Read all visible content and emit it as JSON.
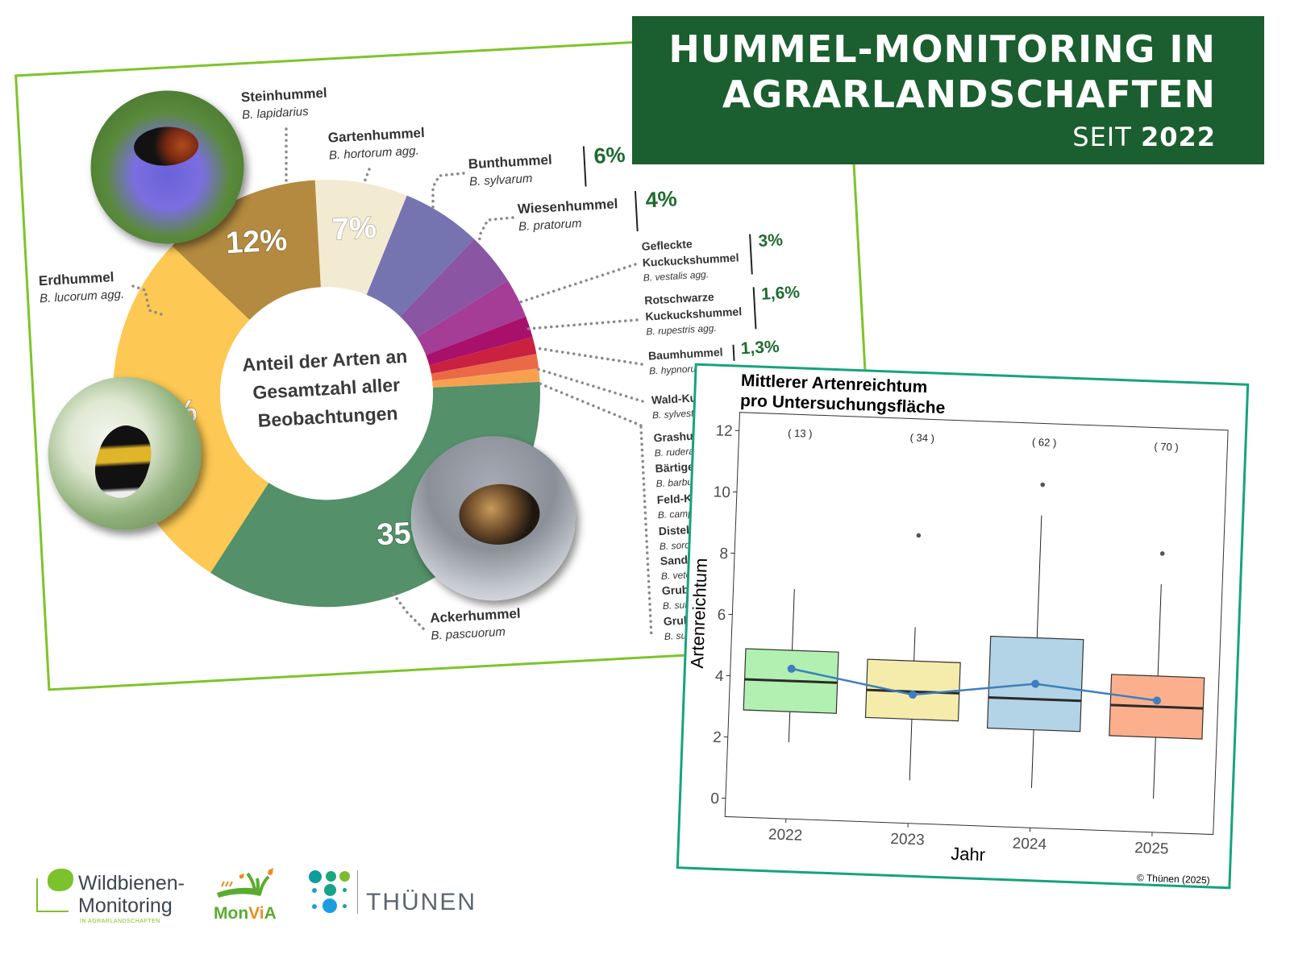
{
  "header": {
    "title_line1": "HUMMEL-MONITORING IN",
    "title_line2": "AGRARLANDSCHAFTEN",
    "since_label": "SEIT",
    "since_year": "2022"
  },
  "chart_data": [
    {
      "type": "pie",
      "style": "donut",
      "title": "Anteil der Arten an Gesamtzahl aller Beobachtungen",
      "center_text": [
        "Anteil der Arten an",
        "Gesamtzahl aller",
        "Beobachtungen"
      ],
      "unit": "%",
      "slices": [
        {
          "name": "Gartenhummel",
          "latin": "B. hortorum agg.",
          "value": 7,
          "label": "7%",
          "color": "#f3ead2"
        },
        {
          "name": "Bunthummel",
          "latin": "B. sylvarum",
          "value": 6,
          "label": "6%",
          "color": "#7674b0"
        },
        {
          "name": "Wiesenhummel",
          "latin": "B. pratorum",
          "value": 4,
          "label": "4%",
          "color": "#8a56a4"
        },
        {
          "name": "Gefleckte",
          "name2": "Kuckuckshummel",
          "latin": "B. vestalis agg.",
          "value": 3,
          "label": "3%",
          "color": "#a53c96"
        },
        {
          "name": "Rotschwarze",
          "name2": "Kuckuckshummel",
          "latin": "B. rupestris agg.",
          "value": 1.6,
          "label": "1,6%",
          "color": "#a8106b"
        },
        {
          "name": "Baumhummel",
          "latin": "B. hypnorum",
          "value": 1.3,
          "label": "1,3%",
          "color": "#c9213f"
        },
        {
          "name": "",
          "latin": "",
          "value": 1.1,
          "label": "",
          "color": "#ea6a48"
        },
        {
          "name": "",
          "latin": "",
          "value": 1.0,
          "label": "",
          "color": "#f7a150"
        },
        {
          "name": "Ackerhummel",
          "latin": "B. pascuorum",
          "value": 35,
          "label": "35%",
          "color": "#54906a"
        },
        {
          "name": "Erdhummel",
          "latin": "B. lucorum agg.",
          "value": 28,
          "label": "28%",
          "color": "#fdc853"
        },
        {
          "name": "Steinhummel",
          "latin": "B. lapidarius",
          "value": 12,
          "label": "12%",
          "color": "#b38a40"
        }
      ],
      "minor_species": [
        {
          "name": "Wald-Ku",
          "latin": "B. sylvestr"
        },
        {
          "name": "Grashu",
          "latin": "B. rudera"
        },
        {
          "name": "Bärtige",
          "latin": "B. barbu"
        },
        {
          "name": "Feld-K",
          "latin": "B. camp"
        },
        {
          "name": "Distel",
          "latin": "B. soro"
        },
        {
          "name": "Sandh",
          "latin": "B. vete"
        },
        {
          "name": "Grub",
          "latin": "B. sub"
        },
        {
          "name": "Grub",
          "latin": "B. sub"
        }
      ],
      "accent_color": "#1f6b2f"
    },
    {
      "type": "box",
      "title_lines": [
        "Mittlerer Artenreichtum",
        "pro Untersuchungsfläche"
      ],
      "xlabel": "Jahr",
      "ylabel": "Artenreichtum",
      "ylim": [
        -0.6,
        12.6
      ],
      "yticks": [
        0,
        2,
        4,
        6,
        8,
        10,
        12
      ],
      "categories": [
        "2022",
        "2023",
        "2024",
        "2025"
      ],
      "n_labels": [
        "( 13 )",
        "( 34 )",
        "( 62 )",
        "( 70 )"
      ],
      "boxes": [
        {
          "min": 1.9,
          "q1": 2.9,
          "median": 3.9,
          "q3": 4.9,
          "max": 6.9,
          "mean": 4.3,
          "outliers": [],
          "color": "#b1f0b0"
        },
        {
          "min": 0.8,
          "q1": 2.8,
          "median": 3.7,
          "q3": 4.7,
          "max": 5.8,
          "mean": 3.6,
          "outliers": [
            8.8
          ],
          "color": "#f5ecac"
        },
        {
          "min": 0.7,
          "q1": 2.6,
          "median": 3.6,
          "q3": 5.6,
          "max": 9.6,
          "mean": 4.1,
          "outliers": [
            10.6
          ],
          "color": "#b3d3e6"
        },
        {
          "min": 0.5,
          "q1": 2.5,
          "median": 3.5,
          "q3": 4.5,
          "max": 7.5,
          "mean": 3.7,
          "outliers": [
            8.5
          ],
          "color": "#fcaf8c"
        }
      ],
      "mean_line_color": "#3d7fbf",
      "credit": "© Thünen (2025)"
    }
  ],
  "logos": {
    "wildbienen_line1": "Wildbienen-",
    "wildbienen_line2": "Monitoring",
    "wildbienen_sub": "IN AGRARLANDSCHAFTEN",
    "monvia_a": "Mon",
    "monvia_b": "Vi",
    "monvia_c": "A",
    "thuenen": "THÜNEN"
  }
}
